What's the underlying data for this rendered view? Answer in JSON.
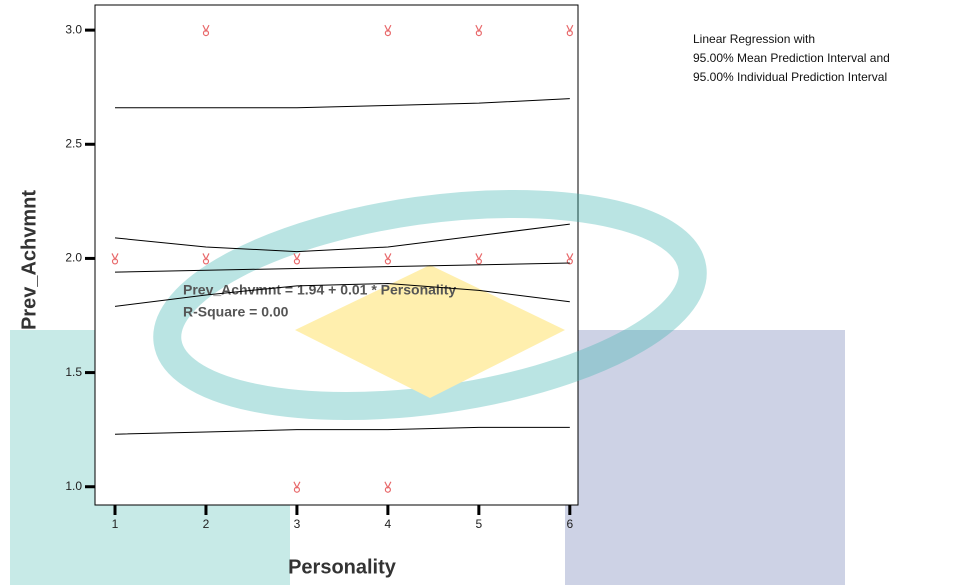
{
  "chart_data": {
    "type": "scatter",
    "legend_lines": [
      "Linear Regression with",
      "95.00% Mean Prediction Interval and",
      "95.00% Individual Prediction Interval"
    ],
    "annotations": [
      "Prev_Achvmnt = 1.94 + 0.01 * Personality",
      "R-Square = 0.00"
    ],
    "x_label": "Personality",
    "y_label": "Prev_Achvmnt",
    "xlim": [
      0.78,
      6.09
    ],
    "ylim": [
      0.92,
      3.11
    ],
    "xticks": [
      1,
      2,
      3,
      4,
      5,
      6
    ],
    "yticks": [
      {
        "value": 1.0,
        "label": "1.0"
      },
      {
        "value": 1.5,
        "label": "1.5"
      },
      {
        "value": 2.0,
        "label": "2.0"
      },
      {
        "value": 2.5,
        "label": "2.5"
      },
      {
        "value": 3.0,
        "label": "3.0"
      }
    ],
    "series": [
      {
        "style": "markers",
        "color": "#e8696b",
        "x": [
          2,
          4,
          5,
          6,
          1,
          2,
          3,
          4,
          5,
          6,
          3,
          4
        ],
        "values": [
          3,
          3,
          3,
          3,
          2,
          2,
          2,
          2,
          2,
          2,
          1,
          1
        ]
      },
      {
        "style": "line",
        "color": "#000000",
        "x": [
          1,
          6
        ],
        "values": [
          1.94,
          1.98
        ]
      },
      {
        "style": "line",
        "color": "#000000",
        "x": [
          1,
          2,
          3,
          4,
          5,
          6
        ],
        "values": [
          2.09,
          2.05,
          2.03,
          2.05,
          2.1,
          2.15
        ]
      },
      {
        "style": "line",
        "color": "#000000",
        "x": [
          1,
          2,
          3,
          4,
          5,
          6
        ],
        "values": [
          1.79,
          1.84,
          1.88,
          1.89,
          1.86,
          1.81
        ]
      },
      {
        "style": "line",
        "color": "#000000",
        "x": [
          1,
          2,
          3,
          4,
          5,
          6
        ],
        "values": [
          2.66,
          2.66,
          2.66,
          2.67,
          2.68,
          2.7
        ]
      },
      {
        "style": "line",
        "color": "#000000",
        "x": [
          1,
          2,
          3,
          4,
          5,
          6
        ],
        "values": [
          1.23,
          1.24,
          1.25,
          1.25,
          1.26,
          1.26
        ]
      }
    ]
  }
}
